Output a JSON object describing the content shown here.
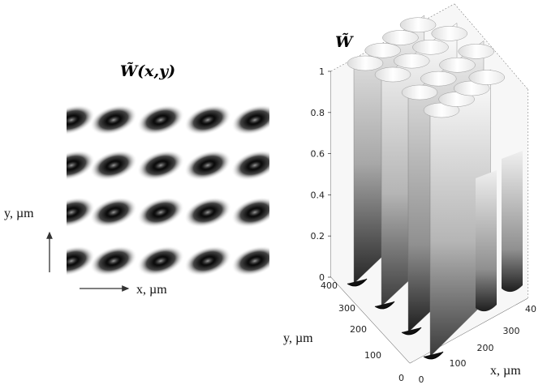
{
  "figure": {
    "left_panel": {
      "title": "W̃(x,y)",
      "x_label": "x, µm",
      "y_label": "y, µm"
    },
    "right_panel": {
      "title": "W̃",
      "x_label": "x, µm",
      "y_label": "y, µm"
    }
  },
  "chart_data": [
    {
      "type": "heatmap",
      "title": "W̃(x,y)",
      "xlabel": "x, µm",
      "ylabel": "y, µm",
      "rows": 4,
      "columns": 5,
      "colormap": "grayscale",
      "cells": []
    },
    {
      "type": "surface",
      "title": "W̃",
      "xlabel": "x, µm",
      "ylabel": "y, µm",
      "zlim": [
        0,
        1
      ],
      "z_ticks": [
        "0",
        "0.2",
        "0.4",
        "0.6",
        "0.8",
        "1"
      ],
      "x_ticks": [
        "0",
        "100",
        "200",
        "300",
        "40"
      ],
      "y_ticks": [
        "0",
        "100",
        "200",
        "300",
        "400"
      ],
      "colormap": "grayscale"
    }
  ]
}
